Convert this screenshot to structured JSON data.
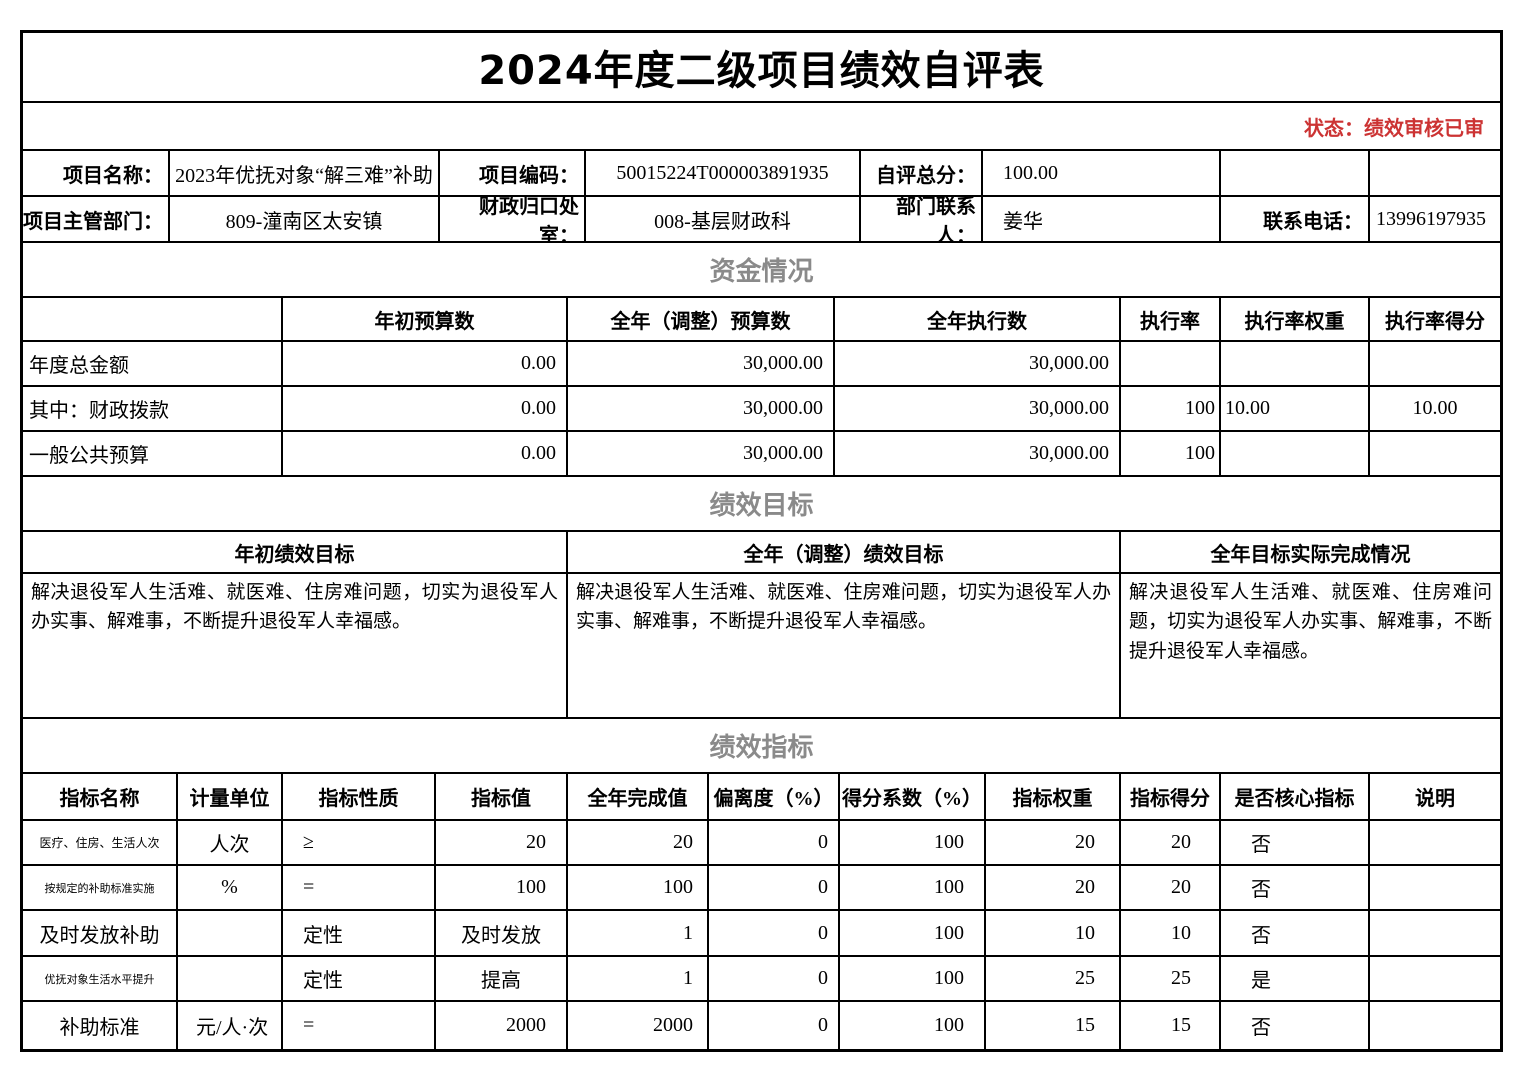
{
  "title": "2024年度二级项目绩效自评表",
  "status": "状态：绩效审核已审",
  "info_rows": [
    [
      "项目名称：",
      "2023年优抚对象“解三难”补助",
      "项目编码：",
      "50015224T000003891935",
      "自评总分：",
      "100.00",
      "",
      ""
    ],
    [
      "项目主管部门：",
      "809-潼南区太安镇",
      "财政归口处室：",
      "008-基层财政科",
      "部门联系人：",
      "姜华",
      "联系电话：",
      "13996197935"
    ]
  ],
  "funding": {
    "section_title": "资金情况",
    "headers": [
      "",
      "年初预算数",
      "全年（调整）预算数",
      "全年执行数",
      "执行率",
      "执行率权重",
      "执行率得分"
    ],
    "rows": [
      [
        "年度总金额",
        "0.00",
        "30,000.00",
        "30,000.00",
        "",
        "",
        ""
      ],
      [
        "其中：财政拨款",
        "0.00",
        "30,000.00",
        "30,000.00",
        "100",
        "10.00",
        "10.00"
      ],
      [
        "一般公共预算",
        "0.00",
        "30,000.00",
        "30,000.00",
        "100",
        "",
        ""
      ]
    ]
  },
  "goals": {
    "section_title": "绩效目标",
    "headers": [
      "年初绩效目标",
      "全年（调整）绩效目标",
      "全年目标实际完成情况"
    ],
    "cells": [
      "解决退役军人生活难、就医难、住房难问题，切实为退役军人办实事、解难事，不断提升退役军人幸福感。",
      "解决退役军人生活难、就医难、住房难问题，切实为退役军人办实事、解难事，不断提升退役军人幸福感。",
      "解决退役军人生活难、就医难、住房难问题，切实为退役军人办实事、解难事，不断提升退役军人幸福感。"
    ]
  },
  "indicators": {
    "section_title": "绩效指标",
    "headers": [
      "指标名称",
      "计量单位",
      "指标性质",
      "指标值",
      "全年完成值",
      "偏离度（%）",
      "得分系数（%）",
      "指标权重",
      "指标得分",
      "是否核心指标",
      "说明"
    ],
    "rows": [
      [
        "医疗、住房、生活人次",
        "人次",
        "≥",
        "20",
        "20",
        "0",
        "100",
        "20",
        "20",
        "否",
        ""
      ],
      [
        "按规定的补助标准实施",
        "%",
        "=",
        "100",
        "100",
        "0",
        "100",
        "20",
        "20",
        "否",
        ""
      ],
      [
        "及时发放补助",
        "",
        "定性",
        "及时发放",
        "1",
        "0",
        "100",
        "10",
        "10",
        "否",
        ""
      ],
      [
        "优抚对象生活水平提升",
        "",
        "定性",
        "提高",
        "1",
        "0",
        "100",
        "25",
        "25",
        "是",
        ""
      ],
      [
        "补助标准",
        "元/人·次",
        "=",
        "2000",
        "2000",
        "0",
        "100",
        "15",
        "15",
        "否",
        ""
      ]
    ]
  }
}
